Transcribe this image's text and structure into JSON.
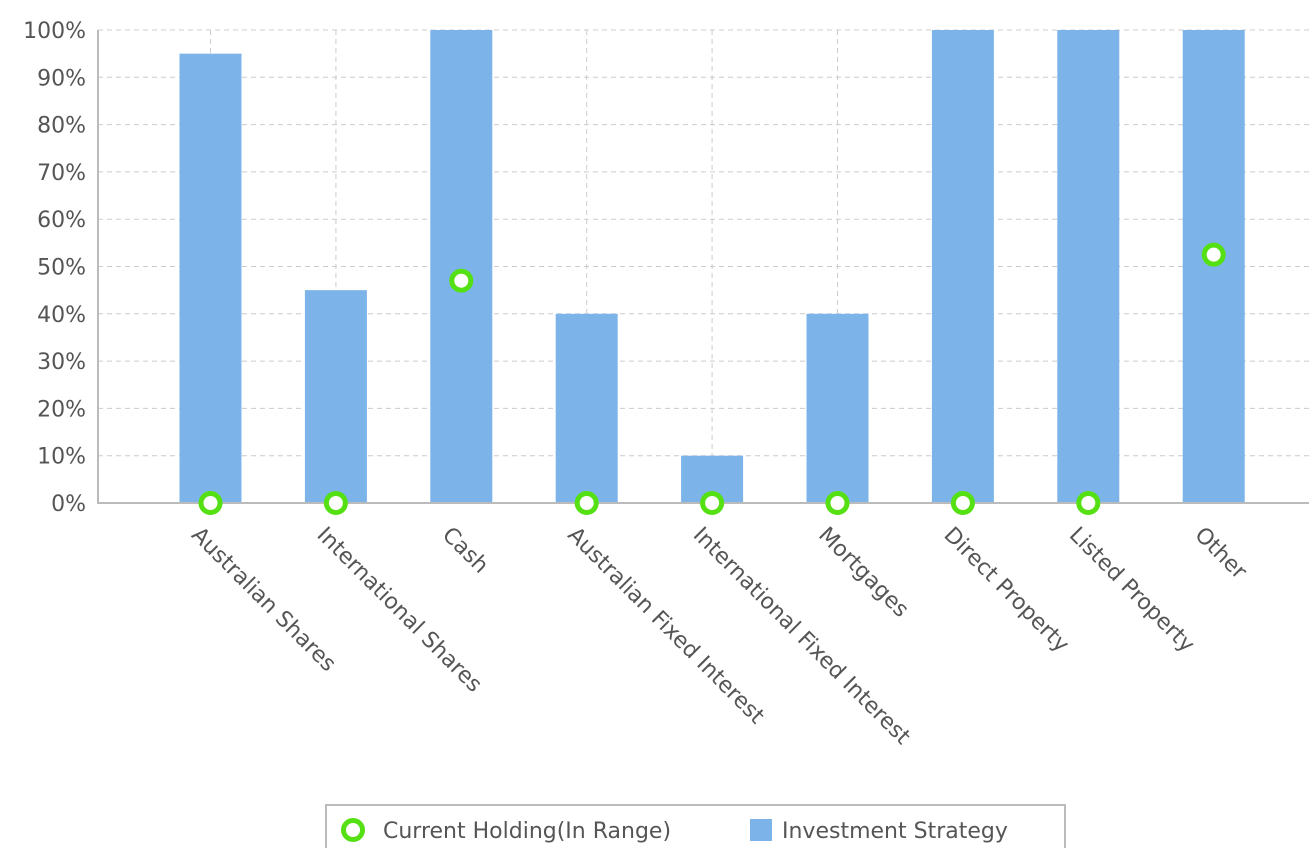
{
  "chart_data": {
    "type": "bar",
    "categories": [
      "Australian Shares",
      "International Shares",
      "Cash",
      "Australian Fixed Interest",
      "International Fixed Interest",
      "Mortgages",
      "Direct Property",
      "Listed Property",
      "Other"
    ],
    "series": [
      {
        "name": "Investment Strategy",
        "kind": "bar",
        "color": "#7cb4ea",
        "values": [
          95,
          45,
          100,
          40,
          10,
          40,
          100,
          100,
          100
        ]
      },
      {
        "name": "Current Holding(In Range)",
        "kind": "marker",
        "color": "#55e014",
        "values": [
          0,
          0,
          47,
          0,
          0,
          0,
          0,
          0,
          52.5
        ]
      }
    ],
    "yticks": [
      "0%",
      "10%",
      "20%",
      "30%",
      "40%",
      "50%",
      "60%",
      "70%",
      "80%",
      "90%",
      "100%"
    ],
    "ylim": [
      0,
      100
    ],
    "grid": true,
    "legend_position": "bottom"
  }
}
